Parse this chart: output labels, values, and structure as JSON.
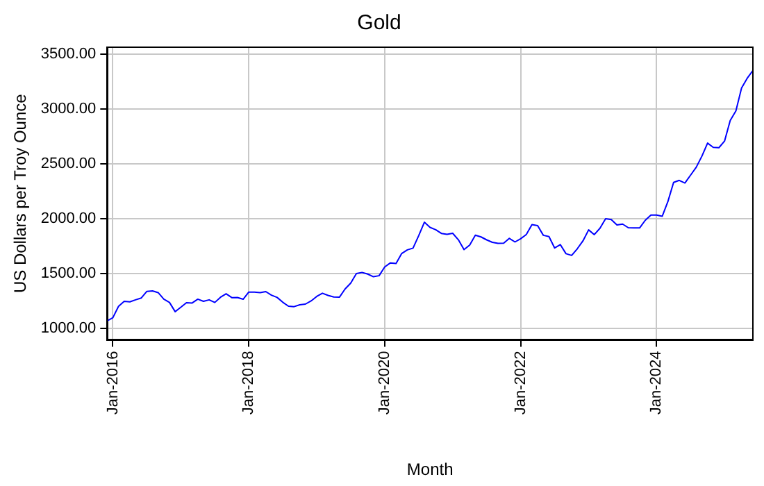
{
  "chart_data": {
    "type": "line",
    "title": "Gold",
    "xlabel": "Month",
    "ylabel": "US Dollars per Troy Ounce",
    "x": [
      "2015-12",
      "2016-01",
      "2016-02",
      "2016-03",
      "2016-04",
      "2016-05",
      "2016-06",
      "2016-07",
      "2016-08",
      "2016-09",
      "2016-10",
      "2016-11",
      "2016-12",
      "2017-01",
      "2017-02",
      "2017-03",
      "2017-04",
      "2017-05",
      "2017-06",
      "2017-07",
      "2017-08",
      "2017-09",
      "2017-10",
      "2017-11",
      "2017-12",
      "2018-01",
      "2018-02",
      "2018-03",
      "2018-04",
      "2018-05",
      "2018-06",
      "2018-07",
      "2018-08",
      "2018-09",
      "2018-10",
      "2018-11",
      "2018-12",
      "2019-01",
      "2019-02",
      "2019-03",
      "2019-04",
      "2019-05",
      "2019-06",
      "2019-07",
      "2019-08",
      "2019-09",
      "2019-10",
      "2019-11",
      "2019-12",
      "2020-01",
      "2020-02",
      "2020-03",
      "2020-04",
      "2020-05",
      "2020-06",
      "2020-07",
      "2020-08",
      "2020-09",
      "2020-10",
      "2020-11",
      "2020-12",
      "2021-01",
      "2021-02",
      "2021-03",
      "2021-04",
      "2021-05",
      "2021-06",
      "2021-07",
      "2021-08",
      "2021-09",
      "2021-10",
      "2021-11",
      "2021-12",
      "2022-01",
      "2022-02",
      "2022-03",
      "2022-04",
      "2022-05",
      "2022-06",
      "2022-07",
      "2022-08",
      "2022-09",
      "2022-10",
      "2022-11",
      "2022-12",
      "2023-01",
      "2023-02",
      "2023-03",
      "2023-04",
      "2023-05",
      "2023-06",
      "2023-07",
      "2023-08",
      "2023-09",
      "2023-10",
      "2023-11",
      "2023-12",
      "2024-01",
      "2024-02",
      "2024-03",
      "2024-04",
      "2024-05",
      "2024-06",
      "2024-07",
      "2024-08",
      "2024-09",
      "2024-10",
      "2024-11",
      "2024-12",
      "2025-01",
      "2025-02",
      "2025-03",
      "2025-04",
      "2025-05",
      "2025-06"
    ],
    "series": [
      {
        "color": "#0000ff",
        "values": [
          1068,
          1097,
          1200,
          1246,
          1242,
          1260,
          1276,
          1337,
          1341,
          1326,
          1266,
          1236,
          1152,
          1192,
          1234,
          1231,
          1266,
          1246,
          1260,
          1236,
          1283,
          1315,
          1280,
          1281,
          1265,
          1331,
          1331,
          1325,
          1335,
          1303,
          1282,
          1238,
          1202,
          1198,
          1215,
          1221,
          1250,
          1291,
          1320,
          1300,
          1286,
          1284,
          1359,
          1413,
          1500,
          1510,
          1495,
          1471,
          1480,
          1560,
          1597,
          1592,
          1683,
          1716,
          1732,
          1846,
          1968,
          1921,
          1900,
          1866,
          1858,
          1867,
          1808,
          1718,
          1760,
          1850,
          1834,
          1807,
          1785,
          1775,
          1777,
          1821,
          1788,
          1817,
          1856,
          1947,
          1937,
          1849,
          1837,
          1733,
          1764,
          1681,
          1665,
          1726,
          1798,
          1898,
          1855,
          1913,
          2000,
          1992,
          1943,
          1951,
          1918,
          1916,
          1916,
          1986,
          2034,
          2033,
          2023,
          2158,
          2331,
          2350,
          2326,
          2398,
          2470,
          2571,
          2690,
          2651,
          2648,
          2709,
          2896,
          2984,
          3193,
          3282,
          3352
        ]
      }
    ],
    "xlim": [
      "2015-12",
      "2025-06"
    ],
    "xticks": [
      {
        "value": "2016-01",
        "label": "Jan-2016"
      },
      {
        "value": "2018-01",
        "label": "Jan-2018"
      },
      {
        "value": "2020-01",
        "label": "Jan-2020"
      },
      {
        "value": "2022-01",
        "label": "Jan-2022"
      },
      {
        "value": "2024-01",
        "label": "Jan-2024"
      }
    ],
    "ylim": [
      895,
      3565
    ],
    "yticks": [
      {
        "value": 1000,
        "label": "1000.00"
      },
      {
        "value": 1500,
        "label": "1500.00"
      },
      {
        "value": 2000,
        "label": "2000.00"
      },
      {
        "value": 2500,
        "label": "2500.00"
      },
      {
        "value": 3000,
        "label": "3000.00"
      },
      {
        "value": 3500,
        "label": "3500.00"
      }
    ],
    "grid": true,
    "legend": false,
    "marker": "none",
    "line_style": "solid"
  }
}
